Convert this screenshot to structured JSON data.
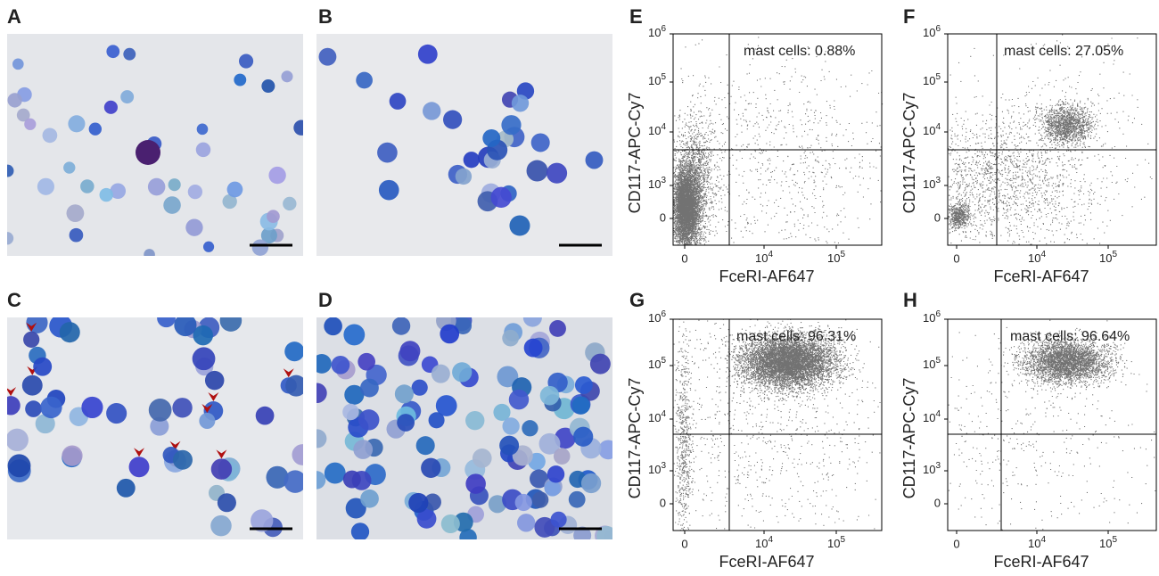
{
  "micrographs": [
    {
      "label": "A"
    },
    {
      "label": "B"
    },
    {
      "label": "C"
    },
    {
      "label": "D"
    }
  ],
  "flow_plots": [
    {
      "label": "E",
      "y_label": "CD117-APC-Cy7",
      "x_label": "FceRI-AF647",
      "gate": "mast cells: 0.88%",
      "y_ticks": [
        0,
        {
          "base": 10,
          "exp": 3
        },
        {
          "base": 10,
          "exp": 4
        },
        {
          "base": 10,
          "exp": 5
        },
        {
          "base": 10,
          "exp": 6
        }
      ],
      "x_ticks": [
        0,
        {
          "base": 10,
          "exp": 4
        },
        {
          "base": 10,
          "exp": 5
        }
      ]
    },
    {
      "label": "F",
      "y_label": "CD117-APC-Cy7",
      "x_label": "FceRI-AF647",
      "gate": "mast cells: 27.05%",
      "y_ticks": [
        0,
        {
          "base": 10,
          "exp": 3
        },
        {
          "base": 10,
          "exp": 4
        },
        {
          "base": 10,
          "exp": 5
        },
        {
          "base": 10,
          "exp": 6
        }
      ],
      "x_ticks": [
        0,
        {
          "base": 10,
          "exp": 4
        },
        {
          "base": 10,
          "exp": 5
        }
      ]
    },
    {
      "label": "G",
      "y_label": "CD117-APC-Cy7",
      "x_label": "FceRI-AF647",
      "gate": "mast cells: 96.31%",
      "y_ticks": [
        0,
        {
          "base": 10,
          "exp": 3
        },
        {
          "base": 10,
          "exp": 4
        },
        {
          "base": 10,
          "exp": 5
        },
        {
          "base": 10,
          "exp": 6
        }
      ],
      "x_ticks": [
        0,
        {
          "base": 10,
          "exp": 4
        },
        {
          "base": 10,
          "exp": 5
        }
      ]
    },
    {
      "label": "H",
      "y_label": "CD117-APC-Cy7",
      "x_label": "FceRI-AF647",
      "gate": "mast cells: 96.64%",
      "y_ticks": [
        0,
        {
          "base": 10,
          "exp": 3
        },
        {
          "base": 10,
          "exp": 4
        },
        {
          "base": 10,
          "exp": 5
        },
        {
          "base": 10,
          "exp": 6
        }
      ],
      "x_ticks": [
        0,
        {
          "base": 10,
          "exp": 4
        },
        {
          "base": 10,
          "exp": 5
        }
      ]
    }
  ]
}
